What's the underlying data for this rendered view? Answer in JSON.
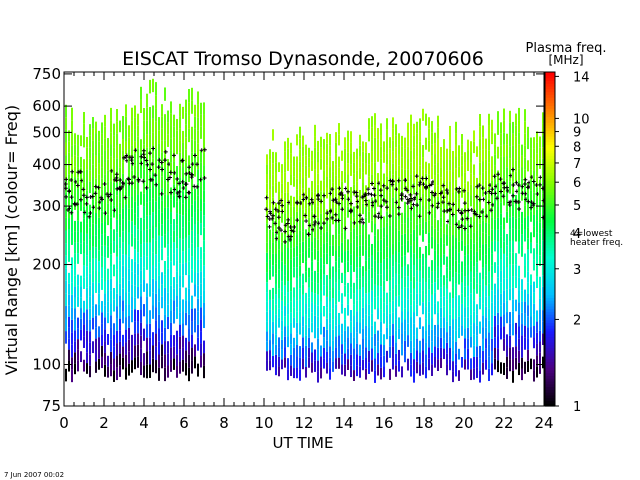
{
  "chart_data": {
    "type": "heatmap",
    "title": "EISCAT Tromso Dynasonde,  20070606",
    "xlabel": "UT TIME",
    "ylabel": "Virtual Range [km]   (colour= Freq)",
    "x_ticks": [
      0,
      2,
      4,
      6,
      8,
      10,
      12,
      14,
      16,
      18,
      20,
      22,
      24
    ],
    "xlim": [
      0,
      24
    ],
    "y_scale": "log",
    "ylim": [
      75,
      760
    ],
    "y_ticks": [
      75,
      100,
      200,
      300,
      400,
      500,
      600,
      750
    ],
    "colorbar": {
      "title_line1": "Plasma freq.",
      "title_line2": "[MHz]",
      "scale": "log",
      "range": [
        1,
        14.5
      ],
      "ticks": [
        1,
        2,
        3,
        4,
        5,
        6,
        7,
        8,
        9,
        10,
        14
      ],
      "annotation_line1": "4=lowest",
      "annotation_line2": "heater freq.",
      "annotation_value": 4,
      "colors": [
        "#000000",
        "#4b0082",
        "#1a1aff",
        "#00bfff",
        "#00ffd0",
        "#00ff40",
        "#80ff00",
        "#ffff00",
        "#ff8000",
        "#ff0000"
      ]
    },
    "data_gap_hours": [
      8.0,
      9.5
    ],
    "peak_trace": [
      {
        "x": 0,
        "y": 340
      },
      {
        "x": 1,
        "y": 330
      },
      {
        "x": 2,
        "y": 320
      },
      {
        "x": 3,
        "y": 370
      },
      {
        "x": 4,
        "y": 400
      },
      {
        "x": 5,
        "y": 380
      },
      {
        "x": 6,
        "y": 370
      },
      {
        "x": 7,
        "y": 400
      },
      {
        "x": 10,
        "y": 280
      },
      {
        "x": 11,
        "y": 275
      },
      {
        "x": 12,
        "y": 285
      },
      {
        "x": 13,
        "y": 290
      },
      {
        "x": 14,
        "y": 300
      },
      {
        "x": 15,
        "y": 310
      },
      {
        "x": 16,
        "y": 320
      },
      {
        "x": 17,
        "y": 330
      },
      {
        "x": 18,
        "y": 320
      },
      {
        "x": 19,
        "y": 300
      },
      {
        "x": 20,
        "y": 300
      },
      {
        "x": 21,
        "y": 320
      },
      {
        "x": 22,
        "y": 340
      },
      {
        "x": 23,
        "y": 330
      },
      {
        "x": 24,
        "y": 320
      }
    ],
    "footer": "7 Jun 2007 00:02"
  }
}
